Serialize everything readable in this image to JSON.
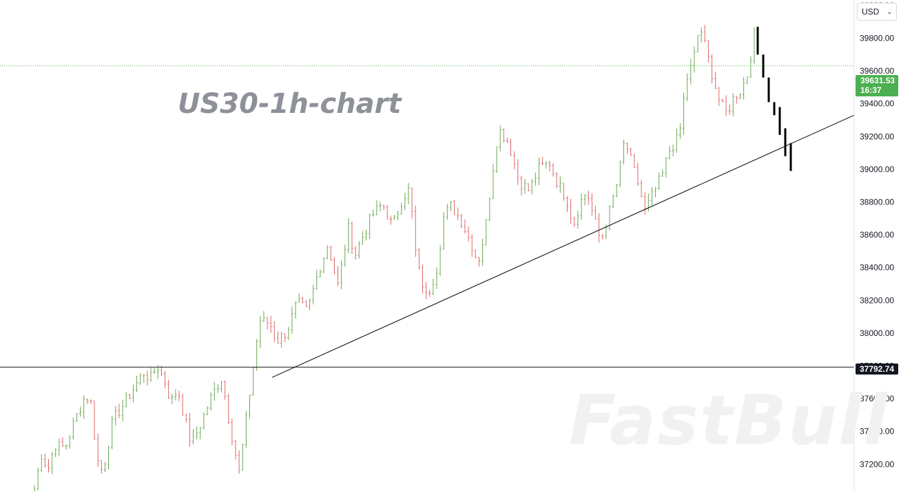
{
  "chart_data": {
    "type": "candlestick",
    "title": "US30-1h-chart",
    "y_axis": {
      "side": "right",
      "ylim": [
        37050,
        40050
      ],
      "ticks": [
        "37200.00",
        "37400.00",
        "37600.00",
        "37800.00",
        "38000.00",
        "38200.00",
        "38400.00",
        "38600.00",
        "38800.00",
        "39000.00",
        "39200.00",
        "39400.00",
        "39600.00",
        "39800.00",
        "40000.00"
      ]
    },
    "currency": "USD",
    "current_price": {
      "value": "39631.53",
      "countdown": "16:37",
      "color": "#4caf50"
    },
    "horizontal_level": {
      "value": "37792.74",
      "color": "#131722"
    },
    "trendline": {
      "from": {
        "bar": 0.302,
        "price": 37730
      },
      "to": {
        "bar": 0.95,
        "price": 39080
      }
    },
    "projection_bars": [
      {
        "o": 39870,
        "c": 39700
      },
      {
        "o": 39700,
        "c": 39560
      },
      {
        "o": 39560,
        "c": 39410
      },
      {
        "o": 39410,
        "c": 39330
      },
      {
        "o": 39380,
        "c": 39210
      },
      {
        "o": 39250,
        "c": 39080
      },
      {
        "o": 39160,
        "c": 38990
      }
    ],
    "price_path": [
      [
        0.0,
        37050
      ],
      [
        0.01,
        37260
      ],
      [
        0.02,
        37170
      ],
      [
        0.03,
        37320
      ],
      [
        0.045,
        37300
      ],
      [
        0.06,
        37480
      ],
      [
        0.075,
        37620
      ],
      [
        0.085,
        37560
      ],
      [
        0.09,
        37250
      ],
      [
        0.1,
        37150
      ],
      [
        0.115,
        37470
      ],
      [
        0.13,
        37560
      ],
      [
        0.145,
        37660
      ],
      [
        0.16,
        37760
      ],
      [
        0.17,
        37720
      ],
      [
        0.18,
        37800
      ],
      [
        0.19,
        37720
      ],
      [
        0.2,
        37580
      ],
      [
        0.21,
        37660
      ],
      [
        0.22,
        37480
      ],
      [
        0.23,
        37320
      ],
      [
        0.245,
        37460
      ],
      [
        0.26,
        37620
      ],
      [
        0.275,
        37730
      ],
      [
        0.285,
        37470
      ],
      [
        0.3,
        37150
      ],
      [
        0.315,
        37620
      ],
      [
        0.33,
        38080
      ],
      [
        0.345,
        38060
      ],
      [
        0.355,
        37950
      ],
      [
        0.37,
        38010
      ],
      [
        0.385,
        38190
      ],
      [
        0.4,
        38130
      ],
      [
        0.415,
        38360
      ],
      [
        0.43,
        38540
      ],
      [
        0.445,
        38290
      ],
      [
        0.46,
        38640
      ],
      [
        0.47,
        38480
      ],
      [
        0.48,
        38580
      ],
      [
        0.495,
        38720
      ],
      [
        0.51,
        38790
      ],
      [
        0.525,
        38650
      ],
      [
        0.54,
        38830
      ],
      [
        0.55,
        38880
      ],
      [
        0.56,
        38430
      ],
      [
        0.575,
        38210
      ],
      [
        0.59,
        38400
      ],
      [
        0.6,
        38710
      ],
      [
        0.61,
        38780
      ],
      [
        0.625,
        38690
      ],
      [
        0.64,
        38550
      ],
      [
        0.65,
        38430
      ],
      [
        0.66,
        38610
      ],
      [
        0.67,
        38940
      ],
      [
        0.68,
        39250
      ],
      [
        0.695,
        39160
      ],
      [
        0.71,
        38930
      ],
      [
        0.725,
        38870
      ],
      [
        0.74,
        39010
      ],
      [
        0.755,
        39040
      ],
      [
        0.765,
        38930
      ],
      [
        0.78,
        38820
      ],
      [
        0.79,
        38660
      ],
      [
        0.8,
        38800
      ],
      [
        0.81,
        38860
      ],
      [
        0.82,
        38700
      ],
      [
        0.83,
        38560
      ],
      [
        0.84,
        38700
      ],
      [
        0.855,
        38930
      ],
      [
        0.865,
        39180
      ],
      [
        0.875,
        39040
      ],
      [
        0.885,
        38910
      ],
      [
        0.895,
        38740
      ],
      [
        0.905,
        38840
      ],
      [
        0.92,
        38960
      ],
      [
        0.93,
        39110
      ],
      [
        0.945,
        39200
      ],
      [
        0.955,
        39540
      ],
      [
        0.965,
        39650
      ],
      [
        0.975,
        39880
      ],
      [
        0.985,
        39720
      ],
      [
        0.995,
        39550
      ],
      [
        1.005,
        39400
      ],
      [
        1.015,
        39340
      ],
      [
        1.025,
        39440
      ],
      [
        1.035,
        39480
      ],
      [
        1.045,
        39580
      ],
      [
        1.055,
        39820
      ]
    ]
  }
}
